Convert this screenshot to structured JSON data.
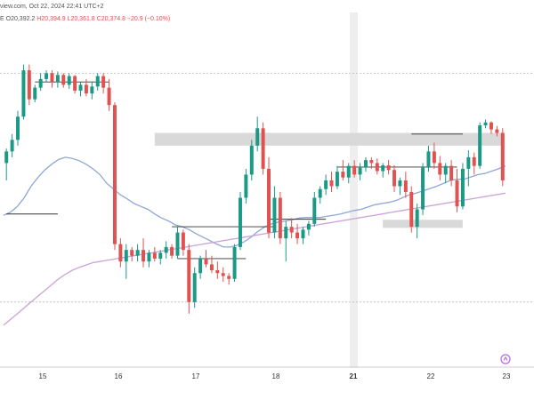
{
  "header": {
    "source_fragment": "view.com, Oct 22, 2024 22:41 UTC+2",
    "ohlc_prefix": "E",
    "open": "O20,392.2",
    "high": "H20,394.9",
    "low": "L20,361.8",
    "close": "C20,374.8",
    "change": "−20.9 (−0.10%)"
  },
  "colors": {
    "up": "#1a9a86",
    "down": "#e0524f",
    "ma_blue": "#8fa7d6",
    "ma_purple": "#c9a3d9",
    "zone": "#d9d9d9",
    "level": "#333333",
    "highlight_column": "#eeeeee"
  },
  "chart_data": {
    "type": "candlestick",
    "x_axis": {
      "tick_labels": [
        "15",
        "16",
        "17",
        "18",
        "21",
        "22",
        "23"
      ],
      "bold_labels": [
        "21"
      ]
    },
    "y_range": [
      19900,
      20460
    ],
    "candles": [
      [
        20240,
        20265,
        20210,
        20260
      ],
      [
        20260,
        20290,
        20250,
        20280
      ],
      [
        20280,
        20330,
        20270,
        20320
      ],
      [
        20320,
        20410,
        20315,
        20400
      ],
      [
        20400,
        20410,
        20340,
        20350
      ],
      [
        20350,
        20375,
        20345,
        20370
      ],
      [
        20370,
        20395,
        20365,
        20385
      ],
      [
        20385,
        20400,
        20380,
        20395
      ],
      [
        20395,
        20400,
        20370,
        20380
      ],
      [
        20380,
        20398,
        20370,
        20392
      ],
      [
        20392,
        20395,
        20370,
        20375
      ],
      [
        20375,
        20395,
        20368,
        20390
      ],
      [
        20390,
        20392,
        20360,
        20365
      ],
      [
        20365,
        20380,
        20355,
        20375
      ],
      [
        20375,
        20385,
        20355,
        20360
      ],
      [
        20360,
        20380,
        20350,
        20372
      ],
      [
        20372,
        20395,
        20365,
        20390
      ],
      [
        20390,
        20395,
        20360,
        20370
      ],
      [
        20370,
        20385,
        20330,
        20340
      ],
      [
        20340,
        20345,
        20090,
        20100
      ],
      [
        20100,
        20110,
        20060,
        20070
      ],
      [
        20070,
        20100,
        20040,
        20090
      ],
      [
        20090,
        20095,
        20070,
        20080
      ],
      [
        20080,
        20100,
        20070,
        20090
      ],
      [
        20090,
        20110,
        20060,
        20070
      ],
      [
        20070,
        20090,
        20060,
        20085
      ],
      [
        20085,
        20095,
        20070,
        20075
      ],
      [
        20075,
        20090,
        20065,
        20085
      ],
      [
        20085,
        20105,
        20075,
        20095
      ],
      [
        20095,
        20100,
        20075,
        20080
      ],
      [
        20080,
        20130,
        20075,
        20120
      ],
      [
        20120,
        20125,
        20080,
        20090
      ],
      [
        20090,
        20100,
        19980,
        20000
      ],
      [
        20000,
        20060,
        19990,
        20050
      ],
      [
        20050,
        20080,
        20040,
        20075
      ],
      [
        20075,
        20090,
        20060,
        20065
      ],
      [
        20065,
        20080,
        20050,
        20055
      ],
      [
        20055,
        20070,
        20040,
        20050
      ],
      [
        20050,
        20060,
        20035,
        20045
      ],
      [
        20045,
        20050,
        20030,
        20040
      ],
      [
        20040,
        20100,
        20035,
        20095
      ],
      [
        20095,
        20190,
        20090,
        20180
      ],
      [
        20180,
        20230,
        20170,
        20220
      ],
      [
        20220,
        20280,
        20210,
        20270
      ],
      [
        20270,
        20320,
        20260,
        20300
      ],
      [
        20300,
        20310,
        20220,
        20230
      ],
      [
        20230,
        20250,
        20110,
        20120
      ],
      [
        20120,
        20200,
        20110,
        20180
      ],
      [
        20180,
        20190,
        20100,
        20110
      ],
      [
        20110,
        20140,
        20070,
        20130
      ],
      [
        20130,
        20145,
        20110,
        20120
      ],
      [
        20120,
        20135,
        20100,
        20110
      ],
      [
        20110,
        20130,
        20100,
        20125
      ],
      [
        20125,
        20140,
        20115,
        20135
      ],
      [
        20135,
        20190,
        20130,
        20180
      ],
      [
        20180,
        20200,
        20170,
        20195
      ],
      [
        20195,
        20220,
        20185,
        20210
      ],
      [
        20210,
        20225,
        20190,
        20200
      ],
      [
        20200,
        20235,
        20195,
        20225
      ],
      [
        20225,
        20245,
        20210,
        20215
      ],
      [
        20215,
        20240,
        20205,
        20235
      ],
      [
        20235,
        20245,
        20215,
        20220
      ],
      [
        20220,
        20240,
        20210,
        20232
      ],
      [
        20232,
        20250,
        20225,
        20245
      ],
      [
        20245,
        20250,
        20230,
        20240
      ],
      [
        20240,
        20248,
        20220,
        20226
      ],
      [
        20226,
        20240,
        20215,
        20236
      ],
      [
        20236,
        20245,
        20220,
        20228
      ],
      [
        20228,
        20236,
        20190,
        20200
      ],
      [
        20200,
        20215,
        20185,
        20210
      ],
      [
        20210,
        20225,
        20180,
        20190
      ],
      [
        20190,
        20200,
        20120,
        20130
      ],
      [
        20130,
        20170,
        20110,
        20160
      ],
      [
        20160,
        20240,
        20150,
        20232
      ],
      [
        20232,
        20270,
        20225,
        20260
      ],
      [
        20260,
        20275,
        20230,
        20240
      ],
      [
        20240,
        20252,
        20210,
        20220
      ],
      [
        20220,
        20240,
        20205,
        20235
      ],
      [
        20235,
        20245,
        20200,
        20210
      ],
      [
        20210,
        20230,
        20155,
        20165
      ],
      [
        20165,
        20240,
        20160,
        20230
      ],
      [
        20230,
        20262,
        20200,
        20250
      ],
      [
        20250,
        20258,
        20220,
        20235
      ],
      [
        20235,
        20310,
        20230,
        20305
      ],
      [
        20305,
        20315,
        20300,
        20310
      ],
      [
        20310,
        20312,
        20290,
        20298
      ],
      [
        20298,
        20304,
        20286,
        20292
      ],
      [
        20292,
        20300,
        20200,
        20210
      ]
    ],
    "zones": [
      {
        "y_top": 20292,
        "y_bottom": 20270,
        "x_from_candle": 26,
        "x_to_candle": 87
      },
      {
        "y_top": 20142,
        "y_bottom": 20128,
        "x_from_candle": 66,
        "x_to_candle": 80
      }
    ],
    "levels": [
      {
        "y": 20380,
        "from_candle": 5,
        "to_candle": 18
      },
      {
        "y": 20152,
        "from_candle": 0,
        "to_candle": 9
      },
      {
        "y": 20130,
        "from_candle": 29,
        "to_candle": 47
      },
      {
        "y": 20075,
        "from_candle": 30,
        "to_candle": 42
      },
      {
        "y": 20143,
        "from_candle": 46,
        "to_candle": 56
      },
      {
        "y": 20233,
        "from_candle": 58,
        "to_candle": 79
      },
      {
        "y": 20290,
        "from_candle": 71,
        "to_candle": 80
      }
    ],
    "moving_averages": [
      {
        "color_key": "ma_blue",
        "values": [
          20150,
          20155,
          20165,
          20180,
          20200,
          20215,
          20228,
          20238,
          20246,
          20250,
          20248,
          20244,
          20238,
          20230,
          20220,
          20205,
          20195,
          20185,
          20178,
          20170,
          20165,
          20160,
          20152,
          20145,
          20140,
          20133,
          20130,
          20125,
          20118,
          20112,
          20106,
          20100,
          20095,
          20095,
          20098,
          20104,
          20112,
          20122,
          20130,
          20135,
          20138,
          20140,
          20142,
          20145,
          20146,
          20146,
          20146,
          20148,
          20150,
          20152,
          20155,
          20158,
          20160,
          20164,
          20168,
          20170,
          20172,
          20175,
          20180,
          20185,
          20188,
          20192,
          20196,
          20200,
          20205,
          20210,
          20212,
          20212,
          20216,
          20220,
          20222,
          20226,
          20230,
          20235
        ]
      },
      {
        "color_key": "ma_purple",
        "values": [
          19960,
          19970,
          19980,
          19990,
          20000,
          20010,
          20020,
          20030,
          20040,
          20048,
          20055,
          20060,
          20064,
          20068,
          20070,
          20072,
          20074,
          20076,
          20078,
          20080,
          20082,
          20084,
          20086,
          20088,
          20090,
          20092,
          20094,
          20096,
          20098,
          20100,
          20102,
          20104,
          20106,
          20108,
          20110,
          20112,
          20114,
          20116,
          20118,
          20120,
          20122,
          20124,
          20126,
          20128,
          20130,
          20132,
          20134,
          20136,
          20138,
          20140,
          20142,
          20144,
          20146,
          20148,
          20150,
          20152,
          20154,
          20156,
          20158,
          20160,
          20162,
          20164,
          20166,
          20168,
          20170,
          20172,
          20174,
          20176,
          20178,
          20180,
          20182,
          20184,
          20186,
          20188
        ]
      }
    ],
    "reference_lines": [
      20395,
      20000
    ]
  }
}
